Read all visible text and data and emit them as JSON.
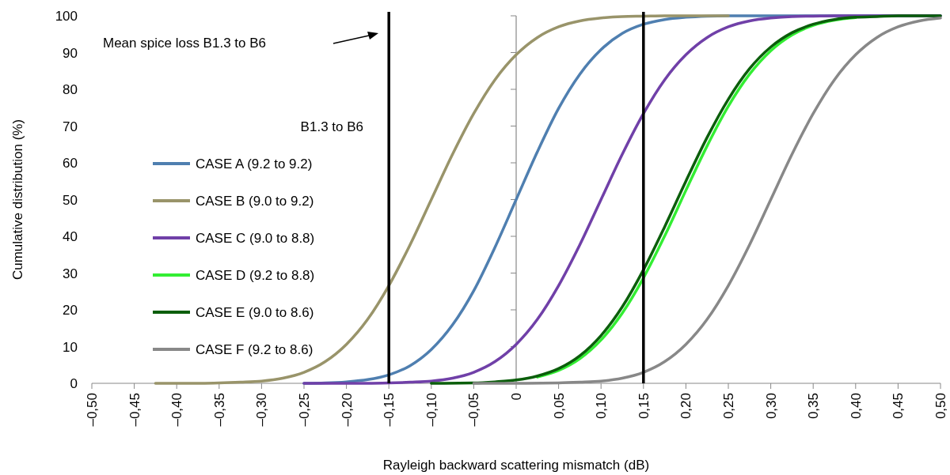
{
  "chart_data": {
    "type": "line",
    "xlabel": "Rayleigh backward scattering mismatch  (dB)",
    "ylabel": "Cumulative distribution  (%)",
    "legend_title": "B1.3 to B6",
    "legend": "left",
    "annotations": [
      "Mean spice loss B1.3 to B6"
    ],
    "xlim": [
      -0.5,
      0.5
    ],
    "ylim": [
      0,
      100
    ],
    "xticks": [
      {
        "value": -0.5,
        "label": "–0,50"
      },
      {
        "value": -0.45,
        "label": "–0,45"
      },
      {
        "value": -0.4,
        "label": "–0,40"
      },
      {
        "value": -0.35,
        "label": "–0,35"
      },
      {
        "value": -0.3,
        "label": "–0,30"
      },
      {
        "value": -0.25,
        "label": "–0,25"
      },
      {
        "value": -0.2,
        "label": "–0,20"
      },
      {
        "value": -0.15,
        "label": "–0,15"
      },
      {
        "value": -0.1,
        "label": "–0,10"
      },
      {
        "value": -0.05,
        "label": "–0,05"
      },
      0,
      {
        "value": 0.05,
        "label": "0,05"
      },
      {
        "value": 0.1,
        "label": "0,10"
      },
      {
        "value": 0.15,
        "label": "0,15"
      },
      {
        "value": 0.2,
        "label": "0,20"
      },
      {
        "value": 0.25,
        "label": "0,25"
      },
      {
        "value": 0.3,
        "label": "0,30"
      },
      {
        "value": 0.35,
        "label": "0,35"
      },
      {
        "value": 0.4,
        "label": "0,40"
      },
      {
        "value": 0.45,
        "label": "0,45"
      },
      {
        "value": 0.5,
        "label": "0,50"
      }
    ],
    "yticks": [
      0,
      10,
      20,
      30,
      40,
      50,
      60,
      70,
      80,
      90,
      100
    ],
    "ref_lines": [
      {
        "axis": "x",
        "value": -0.15,
        "color": "#000000"
      },
      {
        "axis": "x",
        "value": 0.15,
        "color": "#000000"
      }
    ],
    "series": [
      {
        "name": "CASE A (9.2 to 9.2)",
        "color": "#4f7fb0",
        "x": [
          -0.25,
          -0.225,
          -0.2,
          -0.175,
          -0.15,
          -0.125,
          -0.1,
          -0.075,
          -0.05,
          -0.025,
          0,
          0.025,
          0.05,
          0.075,
          0.1,
          0.125,
          0.15,
          0.175,
          0.2,
          0.225,
          0.25,
          0.5
        ],
        "values": [
          0,
          0.1,
          0.4,
          1,
          2.3,
          4.8,
          9.2,
          15.9,
          25.2,
          37,
          50,
          63,
          74.8,
          84.1,
          90.8,
          95.2,
          97.7,
          99,
          99.6,
          99.9,
          100,
          100
        ]
      },
      {
        "name": "CASE B (9.0 to 9.2)",
        "color": "#99946a",
        "x": [
          -0.425,
          -0.4,
          -0.375,
          -0.35,
          -0.325,
          -0.3,
          -0.275,
          -0.25,
          -0.225,
          -0.2,
          -0.175,
          -0.15,
          -0.125,
          -0.1,
          -0.075,
          -0.05,
          -0.025,
          0,
          0.025,
          0.05,
          0.075,
          0.1,
          0.125,
          0.15,
          0.175,
          0.25
        ],
        "values": [
          0,
          0,
          0,
          0.1,
          0.3,
          0.6,
          1.4,
          3,
          5.9,
          10.6,
          17.4,
          26.6,
          37.7,
          50,
          62.3,
          73.4,
          82.6,
          89.4,
          94.1,
          97,
          98.6,
          99.4,
          99.8,
          99.9,
          100,
          100
        ]
      },
      {
        "name": "CASE C (9.0 to 8.8)",
        "color": "#7040a8",
        "x": [
          -0.25,
          -0.2,
          -0.175,
          -0.15,
          -0.125,
          -0.1,
          -0.075,
          -0.05,
          -0.025,
          0,
          0.025,
          0.05,
          0.075,
          0.1,
          0.125,
          0.15,
          0.175,
          0.2,
          0.225,
          0.25,
          0.275,
          0.3,
          0.325,
          0.35,
          0.375,
          0.5
        ],
        "values": [
          0,
          0,
          0,
          0.1,
          0.3,
          0.6,
          1.4,
          3,
          5.9,
          10.6,
          17.4,
          26.6,
          37.7,
          50,
          62.3,
          73.4,
          82.6,
          89.4,
          94.1,
          97,
          98.6,
          99.4,
          99.8,
          99.9,
          100,
          100
        ]
      },
      {
        "name": "CASE D (9.2 to 8.8)",
        "color": "#33ee33",
        "x": [
          0.025,
          0.05,
          0.075,
          0.1,
          0.125,
          0.15,
          0.175,
          0.2,
          0.225,
          0.25,
          0.275,
          0.3,
          0.325,
          0.35,
          0.375,
          0.4
        ],
        "values": [
          1.7,
          3.5,
          6.7,
          11.8,
          19.1,
          28.7,
          40.1,
          52.5,
          64.6,
          75.4,
          84.1,
          90.5,
          94.8,
          97.4,
          98.8,
          99.5
        ]
      },
      {
        "name": "CASE E (9.0 to 8.6)",
        "color": "#0b5e0b",
        "x": [
          -0.1,
          -0.05,
          -0.025,
          0,
          0.025,
          0.05,
          0.075,
          0.1,
          0.125,
          0.15,
          0.175,
          0.2,
          0.225,
          0.25,
          0.275,
          0.3,
          0.325,
          0.35,
          0.375,
          0.4,
          0.425,
          0.45,
          0.5
        ],
        "values": [
          0,
          0.1,
          0.4,
          0.9,
          2,
          4,
          7.5,
          13,
          20.8,
          30.9,
          42.6,
          55,
          66.9,
          77.3,
          85.6,
          91.5,
          95.4,
          97.7,
          99,
          99.6,
          99.8,
          100,
          100
        ]
      },
      {
        "name": "CASE F (9.2 to 8.6)",
        "color": "#888888",
        "x": [
          -0.05,
          0,
          0.05,
          0.075,
          0.1,
          0.125,
          0.15,
          0.175,
          0.2,
          0.225,
          0.25,
          0.275,
          0.3,
          0.325,
          0.35,
          0.375,
          0.4,
          0.425,
          0.45,
          0.475,
          0.5
        ],
        "values": [
          0,
          0,
          0.1,
          0.3,
          0.6,
          1.4,
          3,
          5.9,
          10.6,
          17.4,
          26.6,
          37.7,
          50,
          62.3,
          73.4,
          82.6,
          89.4,
          94.1,
          97,
          98.6,
          99.4
        ]
      }
    ]
  }
}
